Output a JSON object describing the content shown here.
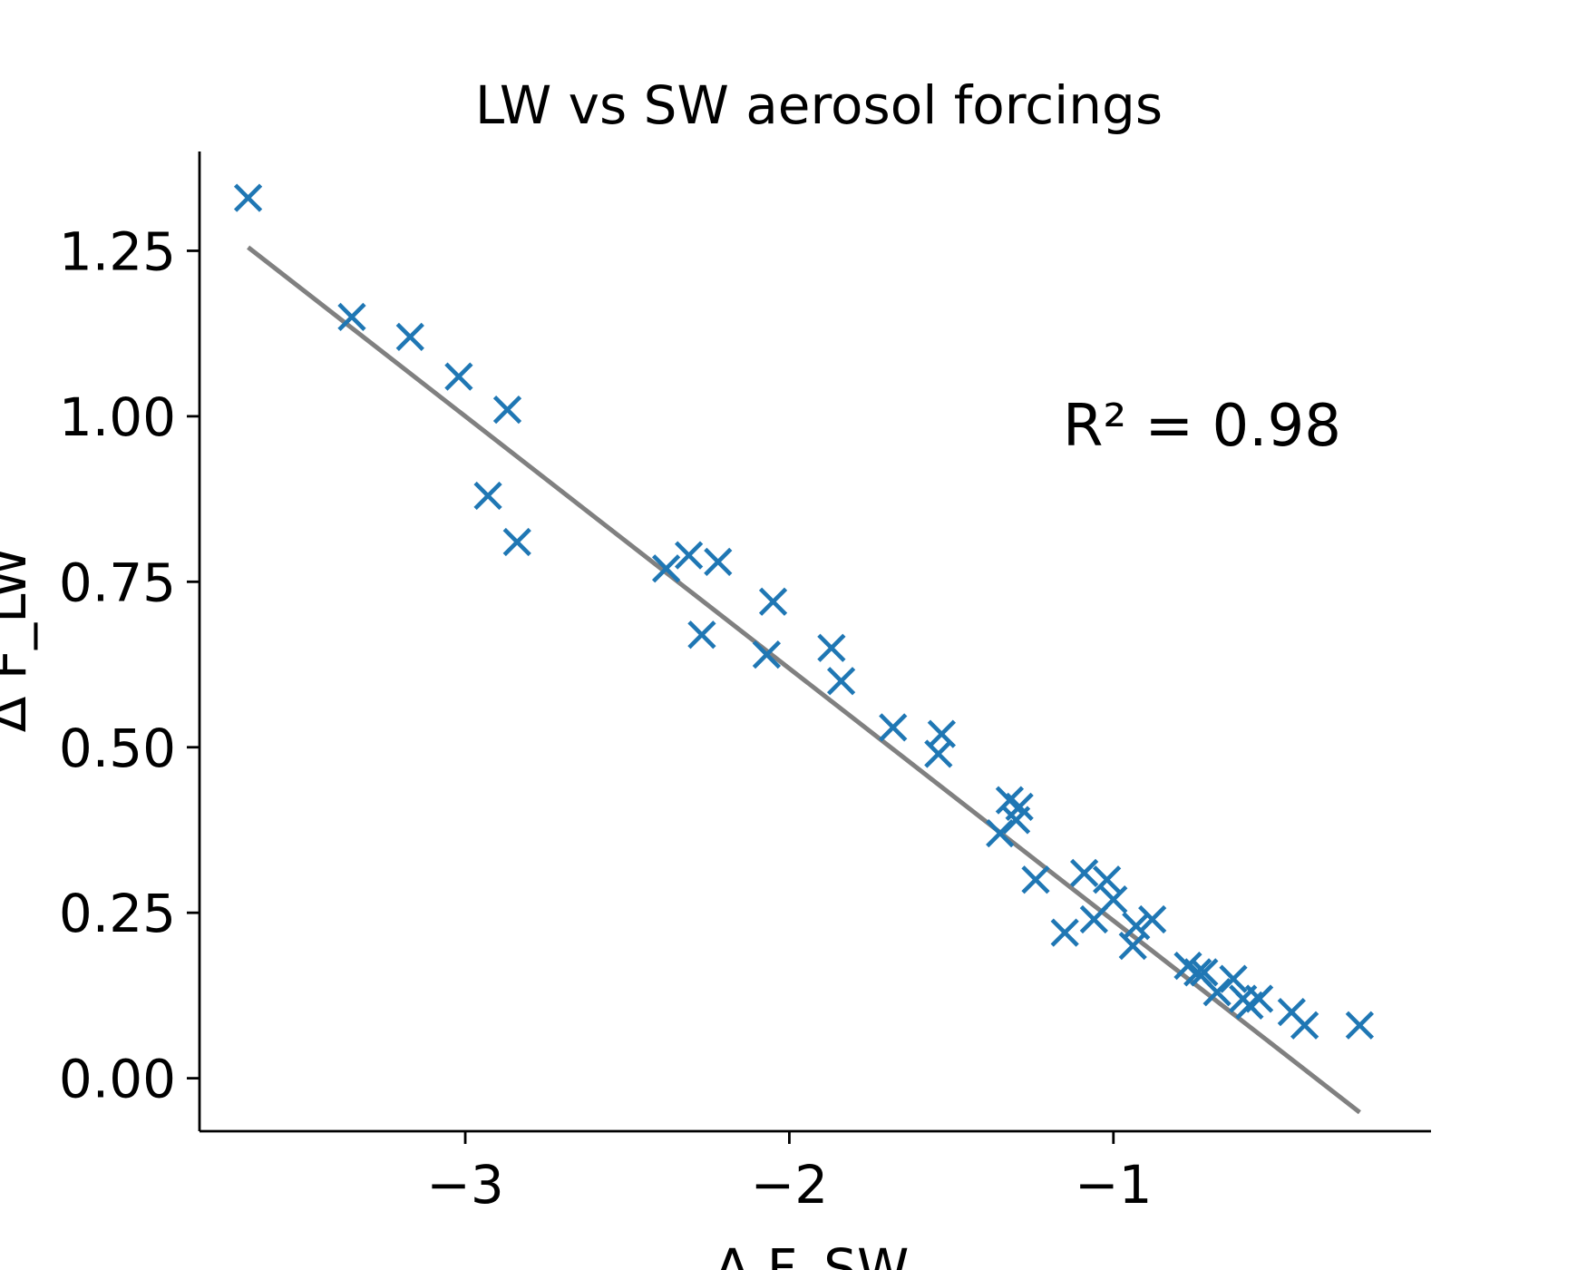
{
  "chart_data": {
    "type": "scatter",
    "title": "LW vs SW aerosol forcings",
    "xlabel": "Δ F_SW",
    "ylabel": "Δ F_LW",
    "xlim": [
      -3.82,
      -0.02
    ],
    "ylim": [
      -0.08,
      1.4
    ],
    "xticks": [
      -3,
      -2,
      -1
    ],
    "xtick_labels": [
      "−3",
      "−2",
      "−1"
    ],
    "yticks": [
      0.0,
      0.25,
      0.5,
      0.75,
      1.0,
      1.25
    ],
    "ytick_labels": [
      "0.00",
      "0.25",
      "0.50",
      "0.75",
      "1.00",
      "1.25"
    ],
    "grid": false,
    "marker": "x",
    "marker_color": "#1f77b4",
    "fit_line_color": "#808080",
    "annotation": "R² = 0.98",
    "series": [
      {
        "x": [
          -3.67,
          -3.35,
          -3.17,
          -3.02,
          -2.87,
          -2.93,
          -2.84,
          -2.38,
          -2.31,
          -2.27,
          -2.22,
          -2.05,
          -2.07,
          -1.87,
          -1.84,
          -1.68,
          -1.53,
          -1.54,
          -1.35,
          -1.32,
          -1.29,
          -1.3,
          -1.24,
          -1.15,
          -1.09,
          -1.06,
          -1.02,
          -1.0,
          -0.94,
          -0.93,
          -0.88,
          -0.77,
          -0.74,
          -0.72,
          -0.68,
          -0.63,
          -0.6,
          -0.58,
          -0.55,
          -0.45,
          -0.41,
          -0.24
        ],
        "y": [
          1.33,
          1.15,
          1.12,
          1.06,
          1.01,
          0.88,
          0.81,
          0.77,
          0.79,
          0.67,
          0.78,
          0.72,
          0.64,
          0.65,
          0.6,
          0.53,
          0.52,
          0.49,
          0.37,
          0.42,
          0.41,
          0.39,
          0.3,
          0.22,
          0.31,
          0.24,
          0.3,
          0.27,
          0.2,
          0.23,
          0.24,
          0.17,
          0.16,
          0.16,
          0.13,
          0.15,
          0.12,
          0.11,
          0.12,
          0.1,
          0.08,
          0.08
        ]
      }
    ],
    "fit": {
      "slope": -0.381,
      "intercept": -0.143,
      "x_range": [
        -3.67,
        -0.24
      ]
    }
  }
}
